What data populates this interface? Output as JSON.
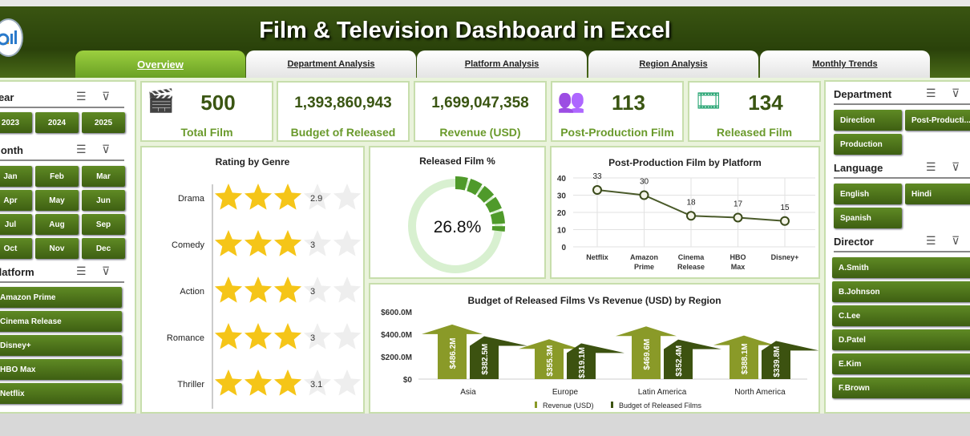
{
  "header": {
    "title": "Film & Television Dashboard in Excel"
  },
  "tabs": [
    {
      "label": "Overview",
      "active": true
    },
    {
      "label": "Department Analysis"
    },
    {
      "label": "Platform Analysis"
    },
    {
      "label": "Region Analysis"
    },
    {
      "label": "Monthly Trends"
    }
  ],
  "left": {
    "year": {
      "title": "Year",
      "items": [
        "2023",
        "2024",
        "2025"
      ]
    },
    "month": {
      "title": "Month",
      "items": [
        "Jan",
        "Feb",
        "Mar",
        "Apr",
        "May",
        "Jun",
        "Jul",
        "Aug",
        "Sep",
        "Oct",
        "Nov",
        "Dec"
      ]
    },
    "platform": {
      "title": "Platform",
      "items": [
        "Amazon Prime",
        "Cinema Release",
        "Disney+",
        "HBO Max",
        "Netflix"
      ]
    }
  },
  "kpis": [
    {
      "value": "500",
      "label": "Total Film",
      "icon": "clapperboard"
    },
    {
      "value": "1,393,860,943",
      "label": "Budget of Released"
    },
    {
      "value": "1,699,047,358",
      "label": "Revenue (USD)"
    },
    {
      "value": "113",
      "label": "Post-Production Film",
      "icon": "film-crew"
    },
    {
      "value": "134",
      "label": "Released Film",
      "icon": "film-strip"
    }
  ],
  "right": {
    "department": {
      "title": "Department",
      "items": [
        "Direction",
        "Post-Producti...",
        "Production"
      ]
    },
    "language": {
      "title": "Language",
      "items": [
        "English",
        "Hindi",
        "Spanish"
      ]
    },
    "director": {
      "title": "Director",
      "items": [
        "A.Smith",
        "B.Johnson",
        "C.Lee",
        "D.Patel",
        "E.Kim",
        "F.Brown"
      ]
    }
  },
  "chart_data": [
    {
      "type": "bar",
      "title": "Rating by Genre",
      "categories": [
        "Drama",
        "Comedy",
        "Action",
        "Romance",
        "Thriller"
      ],
      "values": [
        2.9,
        3.0,
        3.0,
        3.0,
        3.1
      ],
      "max_stars": 5,
      "colors": {
        "star": "#f5c518",
        "empty": "#eeeeee"
      }
    },
    {
      "type": "pie",
      "title": "Released Film %",
      "value_label": "26.8%",
      "values": [
        26.8,
        73.2
      ],
      "colors": [
        "#4f9a2a",
        "#d8f0d0"
      ]
    },
    {
      "type": "line",
      "title": "Post-Production Film by Platform",
      "categories": [
        "Netflix",
        "Amazon Prime",
        "Cinema Release",
        "HBO Max",
        "Disney+"
      ],
      "values": [
        33,
        30,
        18,
        17,
        15
      ],
      "ylim": [
        0,
        40
      ],
      "yticks": [
        "0",
        "10",
        "20",
        "30",
        "40"
      ],
      "grid": true
    },
    {
      "type": "bar",
      "title": "Budget of Released Films Vs Revenue (USD) by Region",
      "categories": [
        "Asia",
        "Europe",
        "Latin America",
        "North America"
      ],
      "yticks": [
        "$0",
        "$200.0M",
        "$400.0M",
        "$600.0M"
      ],
      "ylim": [
        0,
        600
      ],
      "legend": "bottom",
      "series": [
        {
          "name": "Revenue (USD)",
          "values": [
            486.2,
            355.3,
            469.6,
            388.1
          ],
          "labels": [
            "$486.2M",
            "$355.3M",
            "$469.6M",
            "$388.1M"
          ],
          "color": "#8a9a28"
        },
        {
          "name": "Budget of Released Films",
          "values": [
            382.5,
            319.1,
            352.4,
            339.8
          ],
          "labels": [
            "$382.5M",
            "$319.1M",
            "$352.4M",
            "$339.8M"
          ],
          "color": "#3c5210"
        }
      ]
    }
  ]
}
